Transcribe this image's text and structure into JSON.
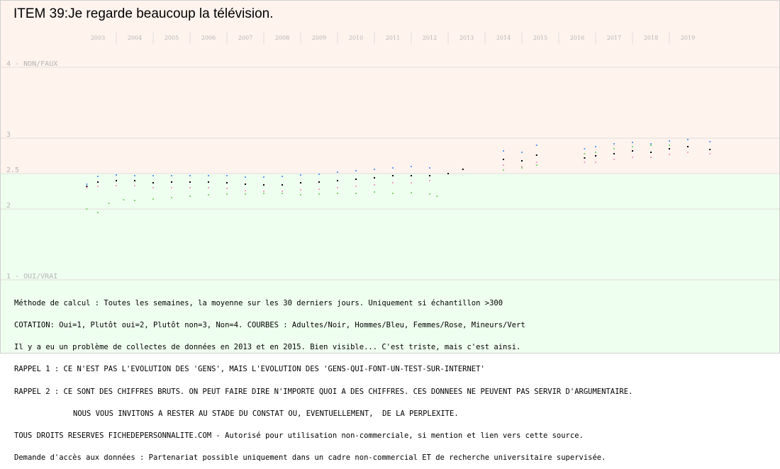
{
  "chart_data": {
    "type": "scatter",
    "title": "ITEM 39:Je regarde beaucoup la télévision.",
    "x_ticks": [
      "2003",
      "2004",
      "2005",
      "2006",
      "2007",
      "2008",
      "2009",
      "2010",
      "2011",
      "2012",
      "2013",
      "2014",
      "2015",
      "2016",
      "2017",
      "2018",
      "2019"
    ],
    "y_ticks": [
      {
        "value": 4,
        "label": "4 - NON/FAUX"
      },
      {
        "value": 3,
        "label": "3"
      },
      {
        "value": 2.5,
        "label": "2.5"
      },
      {
        "value": 2,
        "label": "2"
      },
      {
        "value": 1,
        "label": "1 - OUI/VRAI"
      }
    ],
    "ylim": [
      1,
      4
    ],
    "xlim": [
      2002.5,
      2020.0
    ],
    "grid": true,
    "background_split": 2.5,
    "colors": {
      "upper_band": "#fff3ee",
      "lower_band": "#efffef",
      "grid": "#e2dcdc",
      "tick_text": "#b4b4b4"
    },
    "series": [
      {
        "name": "Adultes",
        "color": "#000000",
        "points": [
          [
            2002.7,
            2.32
          ],
          [
            2003.0,
            2.38
          ],
          [
            2003.5,
            2.4
          ],
          [
            2004.0,
            2.4
          ],
          [
            2004.5,
            2.37
          ],
          [
            2005.0,
            2.38
          ],
          [
            2005.5,
            2.38
          ],
          [
            2006.0,
            2.38
          ],
          [
            2006.5,
            2.37
          ],
          [
            2007.0,
            2.35
          ],
          [
            2007.5,
            2.34
          ],
          [
            2008.0,
            2.34
          ],
          [
            2008.5,
            2.37
          ],
          [
            2009.0,
            2.38
          ],
          [
            2009.5,
            2.4
          ],
          [
            2010.0,
            2.42
          ],
          [
            2010.5,
            2.44
          ],
          [
            2011.0,
            2.47
          ],
          [
            2011.5,
            2.47
          ],
          [
            2012.0,
            2.47
          ],
          [
            2012.5,
            2.5
          ],
          [
            2012.9,
            2.56
          ],
          [
            2014.0,
            2.7
          ],
          [
            2014.5,
            2.68
          ],
          [
            2014.9,
            2.76
          ],
          [
            2016.2,
            2.72
          ],
          [
            2016.5,
            2.75
          ],
          [
            2017.0,
            2.78
          ],
          [
            2017.5,
            2.82
          ],
          [
            2018.0,
            2.8
          ],
          [
            2018.5,
            2.85
          ],
          [
            2019.0,
            2.88
          ],
          [
            2019.6,
            2.84
          ]
        ]
      },
      {
        "name": "Hommes",
        "color": "#5b9bf0",
        "points": [
          [
            2002.7,
            2.35
          ],
          [
            2003.0,
            2.46
          ],
          [
            2003.5,
            2.48
          ],
          [
            2004.0,
            2.47
          ],
          [
            2004.5,
            2.47
          ],
          [
            2005.0,
            2.47
          ],
          [
            2005.5,
            2.47
          ],
          [
            2006.0,
            2.47
          ],
          [
            2006.5,
            2.47
          ],
          [
            2007.0,
            2.45
          ],
          [
            2007.5,
            2.45
          ],
          [
            2008.0,
            2.46
          ],
          [
            2008.5,
            2.48
          ],
          [
            2009.0,
            2.49
          ],
          [
            2009.5,
            2.52
          ],
          [
            2010.0,
            2.54
          ],
          [
            2010.5,
            2.56
          ],
          [
            2011.0,
            2.58
          ],
          [
            2011.5,
            2.6
          ],
          [
            2012.0,
            2.58
          ],
          [
            2014.0,
            2.82
          ],
          [
            2014.5,
            2.8
          ],
          [
            2014.9,
            2.9
          ],
          [
            2016.2,
            2.85
          ],
          [
            2016.5,
            2.88
          ],
          [
            2017.0,
            2.92
          ],
          [
            2017.5,
            2.94
          ],
          [
            2018.0,
            2.92
          ],
          [
            2018.5,
            2.96
          ],
          [
            2019.0,
            2.98
          ],
          [
            2019.6,
            2.95
          ]
        ]
      },
      {
        "name": "Femmes",
        "color": "#f2a0c8",
        "points": [
          [
            2002.7,
            2.3
          ],
          [
            2003.0,
            2.32
          ],
          [
            2003.5,
            2.33
          ],
          [
            2004.0,
            2.33
          ],
          [
            2004.5,
            2.3
          ],
          [
            2005.0,
            2.3
          ],
          [
            2005.5,
            2.3
          ],
          [
            2006.0,
            2.3
          ],
          [
            2006.5,
            2.29
          ],
          [
            2007.0,
            2.26
          ],
          [
            2007.5,
            2.25
          ],
          [
            2008.0,
            2.25
          ],
          [
            2008.5,
            2.27
          ],
          [
            2009.0,
            2.28
          ],
          [
            2009.5,
            2.3
          ],
          [
            2010.0,
            2.32
          ],
          [
            2010.5,
            2.34
          ],
          [
            2011.0,
            2.37
          ],
          [
            2011.5,
            2.37
          ],
          [
            2012.0,
            2.4
          ],
          [
            2014.0,
            2.62
          ],
          [
            2014.5,
            2.6
          ],
          [
            2014.9,
            2.66
          ],
          [
            2016.2,
            2.66
          ],
          [
            2016.5,
            2.66
          ],
          [
            2017.0,
            2.7
          ],
          [
            2017.5,
            2.73
          ],
          [
            2018.0,
            2.73
          ],
          [
            2018.5,
            2.77
          ],
          [
            2019.0,
            2.8
          ],
          [
            2019.6,
            2.78
          ]
        ]
      },
      {
        "name": "Mineurs",
        "color": "#7fd86e",
        "points": [
          [
            2002.7,
            2.0
          ],
          [
            2003.0,
            1.95
          ],
          [
            2003.3,
            2.08
          ],
          [
            2003.7,
            2.13
          ],
          [
            2004.0,
            2.12
          ],
          [
            2004.5,
            2.14
          ],
          [
            2005.0,
            2.16
          ],
          [
            2005.5,
            2.18
          ],
          [
            2006.0,
            2.2
          ],
          [
            2006.5,
            2.21
          ],
          [
            2007.0,
            2.21
          ],
          [
            2007.5,
            2.22
          ],
          [
            2008.0,
            2.22
          ],
          [
            2008.5,
            2.2
          ],
          [
            2009.0,
            2.21
          ],
          [
            2009.5,
            2.22
          ],
          [
            2010.0,
            2.22
          ],
          [
            2010.5,
            2.24
          ],
          [
            2011.0,
            2.22
          ],
          [
            2011.5,
            2.23
          ],
          [
            2012.0,
            2.21
          ],
          [
            2012.2,
            2.18
          ],
          [
            2014.0,
            2.55
          ],
          [
            2014.5,
            2.58
          ],
          [
            2014.9,
            2.62
          ],
          [
            2016.2,
            2.78
          ],
          [
            2016.5,
            2.8
          ],
          [
            2017.0,
            2.85
          ],
          [
            2017.5,
            2.88
          ],
          [
            2018.0,
            2.9
          ],
          [
            2018.5,
            2.9
          ]
        ]
      }
    ]
  },
  "notes": [
    "Méthode de calcul : Toutes les semaines, la moyenne sur les 30 derniers jours. Uniquement si échantillon >300",
    "COTATION: Oui=1, Plutôt oui=2, Plutôt non=3, Non=4. COURBES : Adultes/Noir, Hommes/Bleu, Femmes/Rose, Mineurs/Vert",
    "Il y a eu un problème de collectes de données en 2013 et en 2015. Bien visible... C'est triste, mais c'est ainsi.",
    "RAPPEL 1 : CE N'EST PAS L'EVOLUTION DES 'GENS', MAIS L'EVOLUTION DES 'GENS-QUI-FONT-UN-TEST-SUR-INTERNET'",
    "RAPPEL 2 : CE SONT DES CHIFFRES BRUTS. ON PEUT FAIRE DIRE N'IMPORTE QUOI A DES CHIFFRES. CES DONNEES NE PEUVENT PAS SERVIR D'ARGUMENTAIRE.",
    "NOUS VOUS INVITONS A RESTER AU STADE DU CONSTAT OU, EVENTUELLEMENT,  DE LA PERPLEXITE.",
    "TOUS DROITS RESERVES FICHEDEPERSONNALITE.COM - Autorisé pour utilisation non-commerciale, si mention et lien vers cette source.",
    "Demande d'accès aux données : Partenariat possible uniquement dans un cadre non-commercial ET de recherche universitaire supervisée."
  ]
}
